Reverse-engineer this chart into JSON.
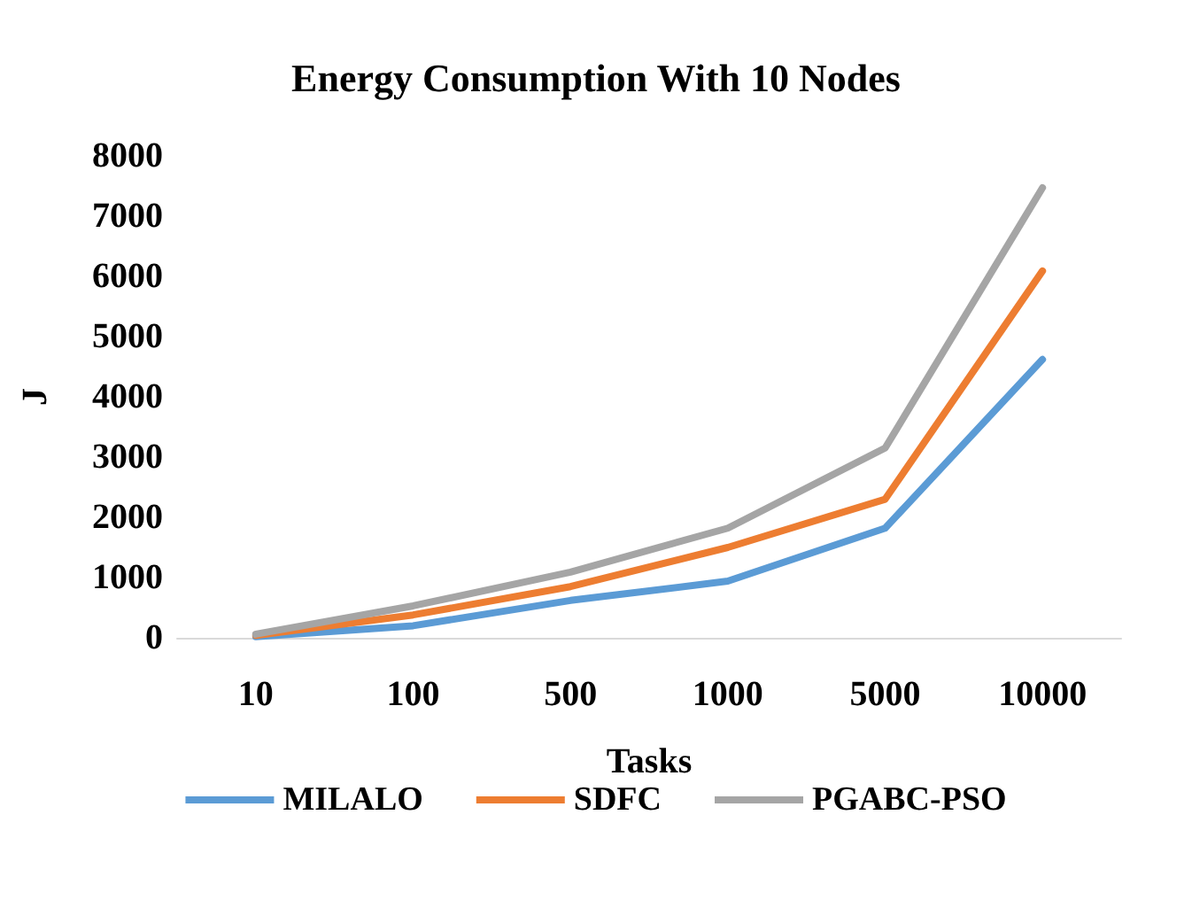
{
  "chart_data": {
    "type": "line",
    "title": "Energy Consumption With 10 Nodes",
    "xlabel": "Tasks",
    "ylabel": "J",
    "categories": [
      "10",
      "100",
      "500",
      "1000",
      "5000",
      "10000"
    ],
    "series": [
      {
        "name": "MILALO",
        "color": "#5b9bd5",
        "values": [
          20,
          200,
          620,
          940,
          1820,
          4620
        ]
      },
      {
        "name": "SDFC",
        "color": "#ed7d31",
        "values": [
          40,
          380,
          850,
          1500,
          2300,
          6090
        ]
      },
      {
        "name": "PGABC-PSO",
        "color": "#a5a5a5",
        "values": [
          60,
          530,
          1090,
          1820,
          3150,
          7470
        ]
      }
    ],
    "ylim": [
      0,
      8000
    ],
    "yticks": [
      0,
      1000,
      2000,
      3000,
      4000,
      5000,
      6000,
      7000,
      8000
    ],
    "grid": false,
    "legend": "bottom",
    "marker": "none",
    "line_style": "solid"
  }
}
